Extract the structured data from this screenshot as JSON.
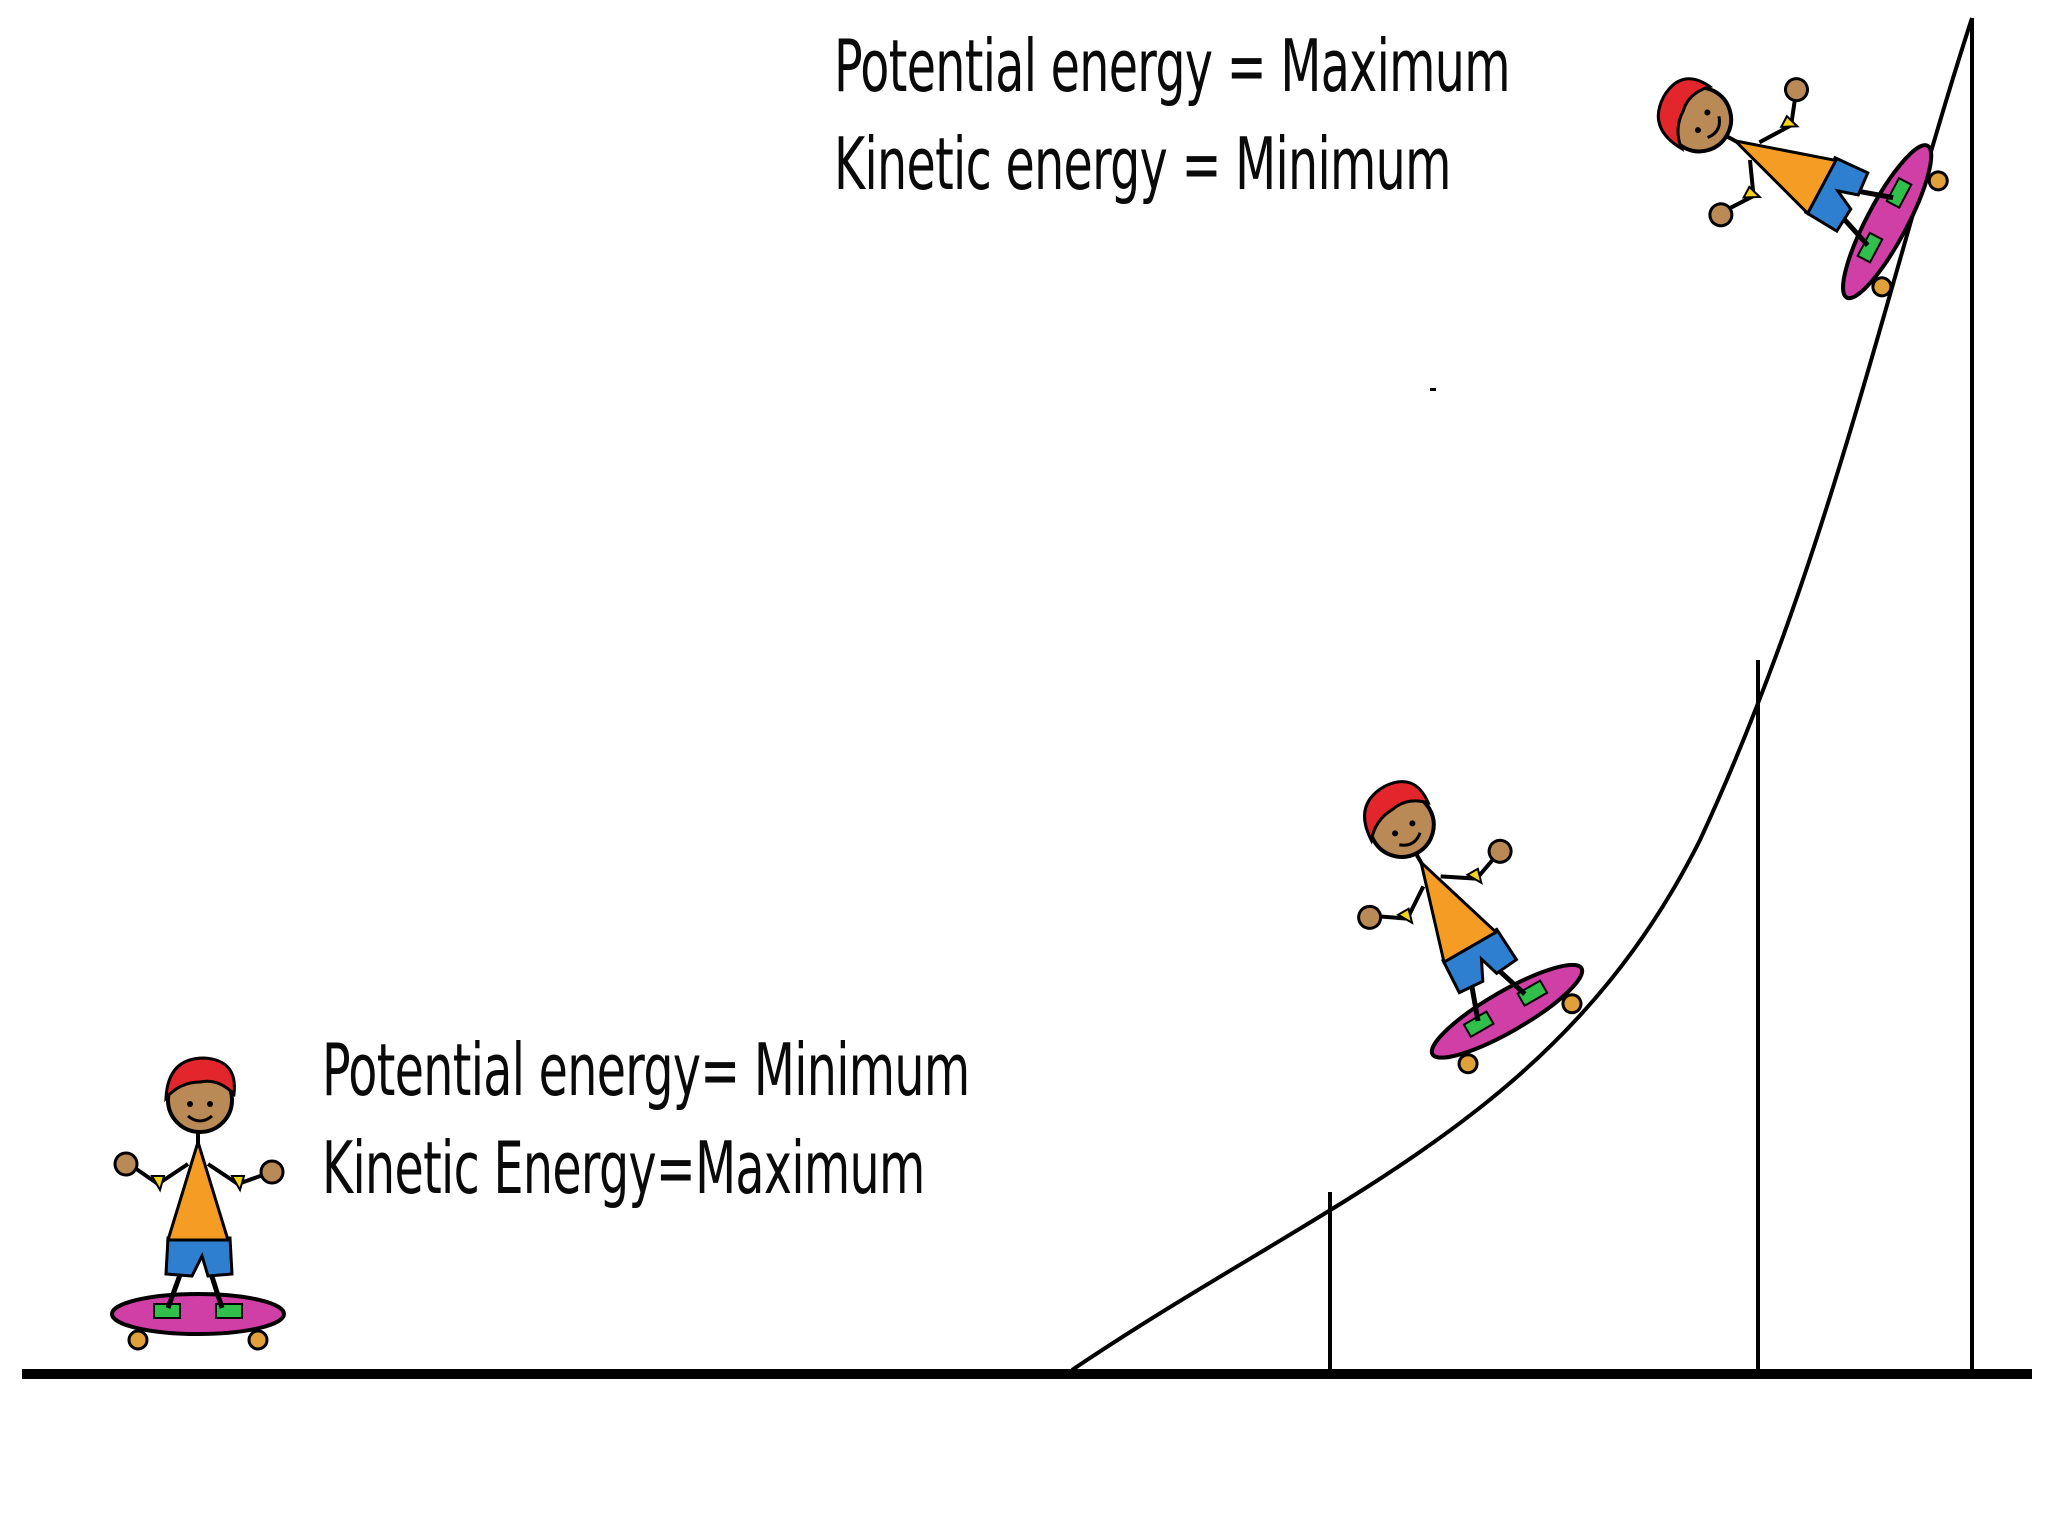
{
  "top_label": {
    "line1": "Potential energy = Maximum",
    "line2": "Kinetic energy = Minimum"
  },
  "bottom_label": {
    "line1": "Potential energy= Minimum",
    "line2": "Kinetic Energy=Maximum"
  },
  "colors": {
    "helmet": "#e3262b",
    "skin": "#b98a55",
    "shirt": "#f59c25",
    "shorts": "#2f7fd1",
    "board": "#cf3fa6",
    "board_pads": "#2fbf4a",
    "hands": "#f2d21a",
    "wheels": "#e0a13b",
    "line": "#000000"
  }
}
